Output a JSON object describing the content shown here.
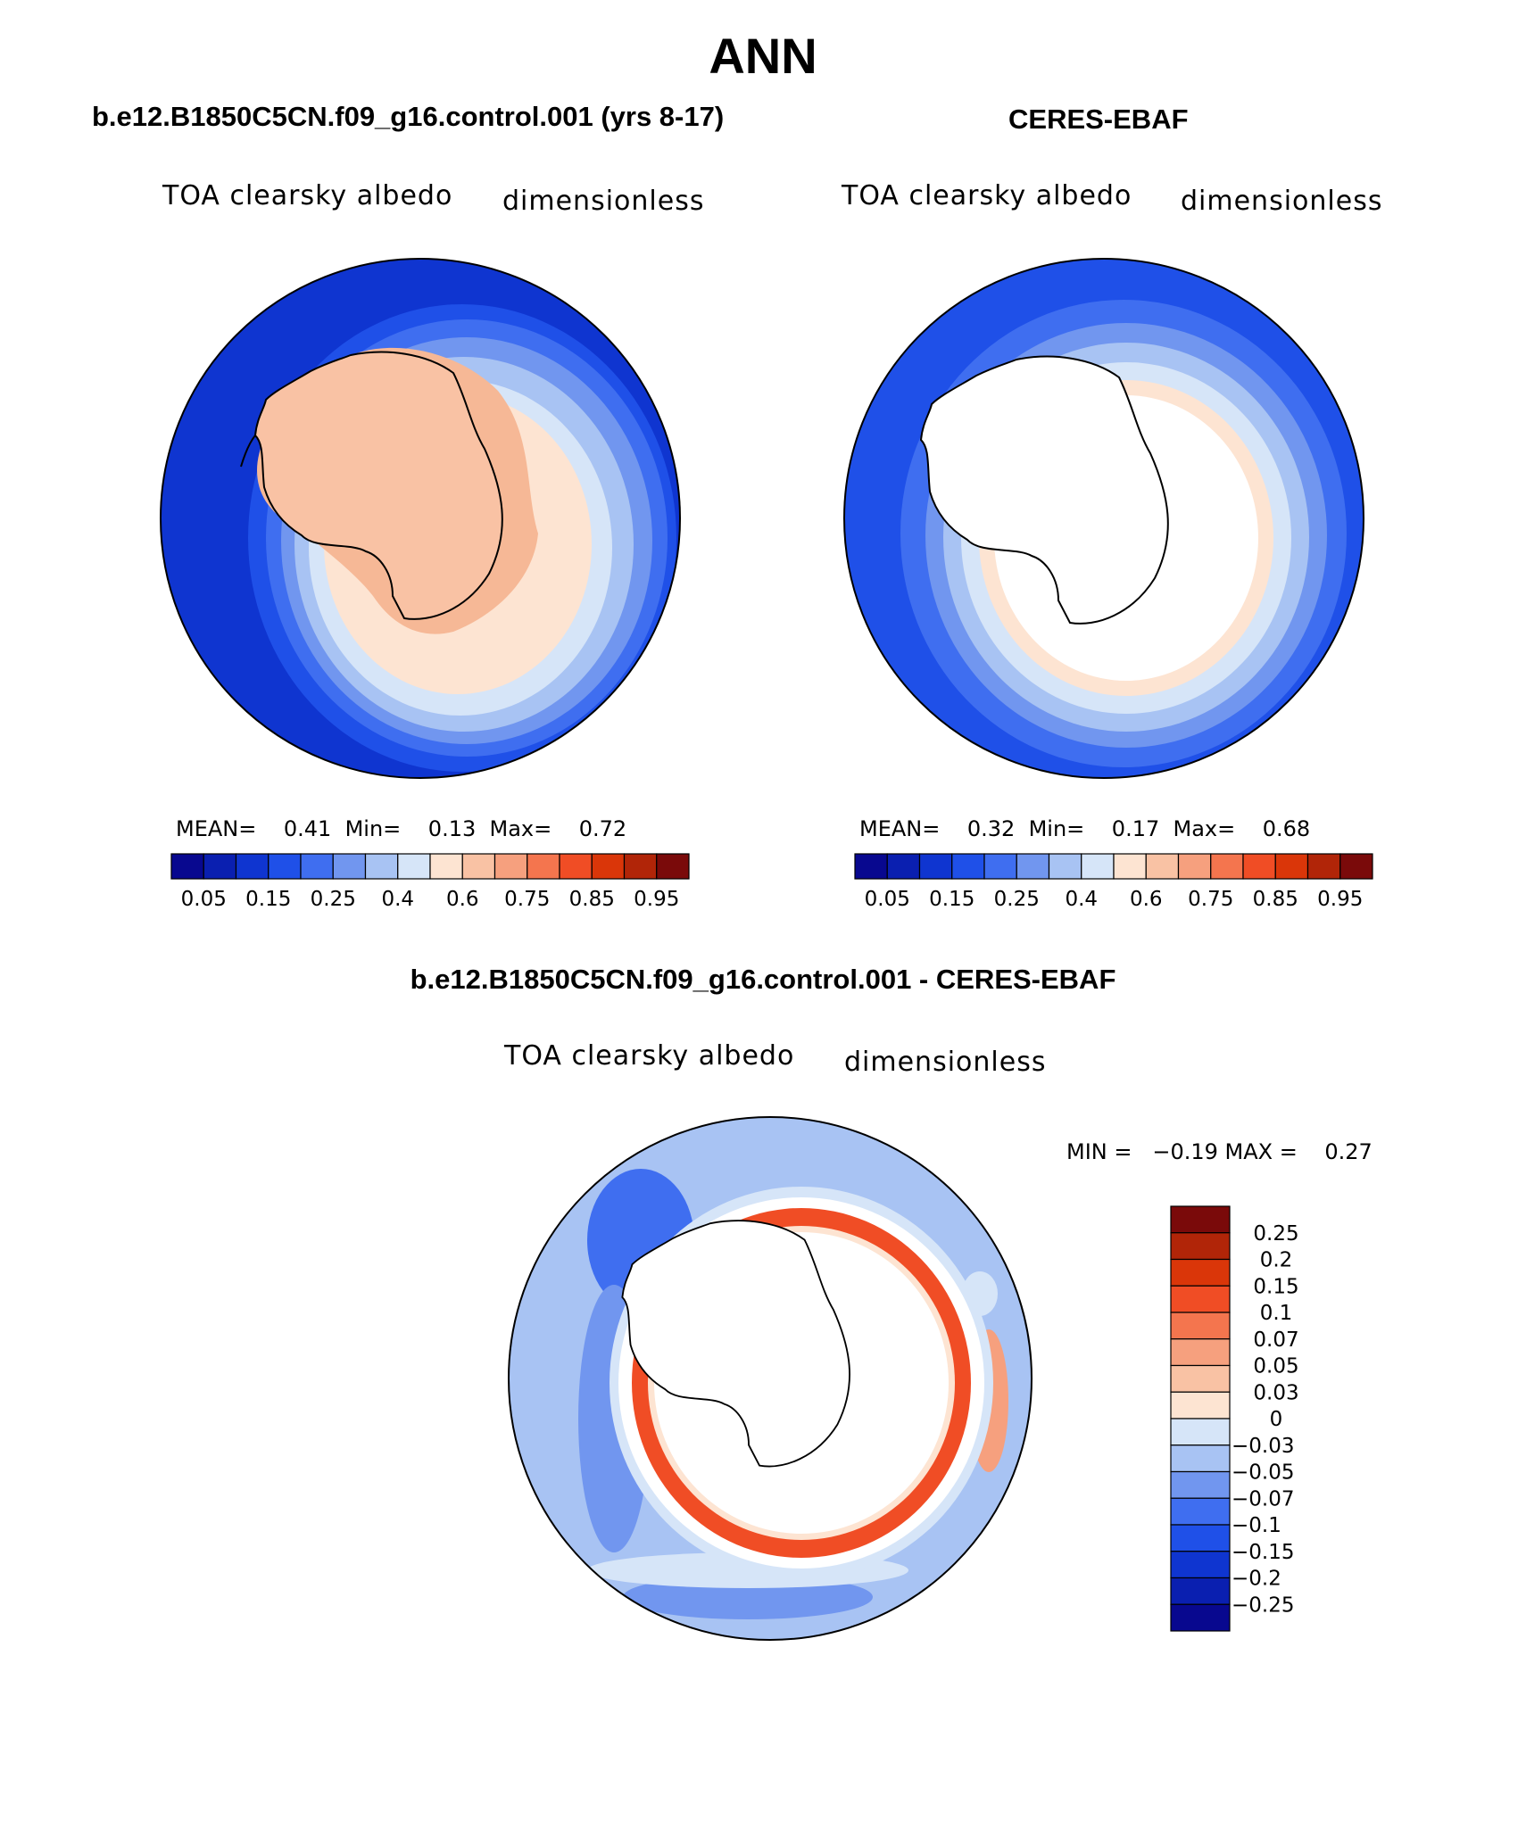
{
  "title": "ANN",
  "panels": [
    {
      "id": "model",
      "title": "b.e12.B1850C5CN.f09_g16.control.001 (yrs 8-17)",
      "variable": "TOA clearsky albedo",
      "units": "dimensionless",
      "stats": {
        "mean_label": "MEAN=",
        "mean": "0.41",
        "min_label": "Min=",
        "min": "0.13",
        "max_label": "Max=",
        "max": "0.72"
      }
    },
    {
      "id": "obs",
      "title": "CERES-EBAF",
      "variable": "TOA clearsky albedo",
      "units": "dimensionless",
      "stats": {
        "mean_label": "MEAN=",
        "mean": "0.32",
        "min_label": "Min=",
        "min": "0.17",
        "max_label": "Max=",
        "max": "0.68"
      }
    }
  ],
  "diff_panel": {
    "title": "b.e12.B1850C5CN.f09_g16.control.001 - CERES-EBAF",
    "variable": "TOA clearsky albedo",
    "units": "dimensionless",
    "minmax": "MIN =   −0.19 MAX =    0.27"
  },
  "colorbar_horizontal": {
    "colors": [
      "#08088f",
      "#0a1fb0",
      "#0f35d0",
      "#1f50e8",
      "#3f6ef0",
      "#7196ef",
      "#a8c3f3",
      "#d6e5f8",
      "#fde4d2",
      "#f9c2a4",
      "#f6a07e",
      "#f4754e",
      "#f04d25",
      "#da3609",
      "#b12508",
      "#7a0a0a"
    ],
    "labels": [
      "0.05",
      "0.15",
      "0.25",
      "0.4",
      "0.6",
      "0.75",
      "0.85",
      "0.95"
    ]
  },
  "colorbar_vertical": {
    "colors_top_to_bottom": [
      "#7a0a0a",
      "#b12508",
      "#da3609",
      "#f04d25",
      "#f4754e",
      "#f6a07e",
      "#f9c2a4",
      "#fde4d2",
      "#d6e5f8",
      "#a8c3f3",
      "#7196ef",
      "#3f6ef0",
      "#1f50e8",
      "#0f35d0",
      "#0a1fb0",
      "#08088f"
    ],
    "labels_top_to_bottom": [
      "0.25",
      "0.2",
      "0.15",
      "0.1",
      "0.07",
      "0.05",
      "0.03",
      "0",
      "−0.03",
      "−0.05",
      "−0.07",
      "−0.1",
      "−0.15",
      "−0.2",
      "−0.25"
    ]
  }
}
